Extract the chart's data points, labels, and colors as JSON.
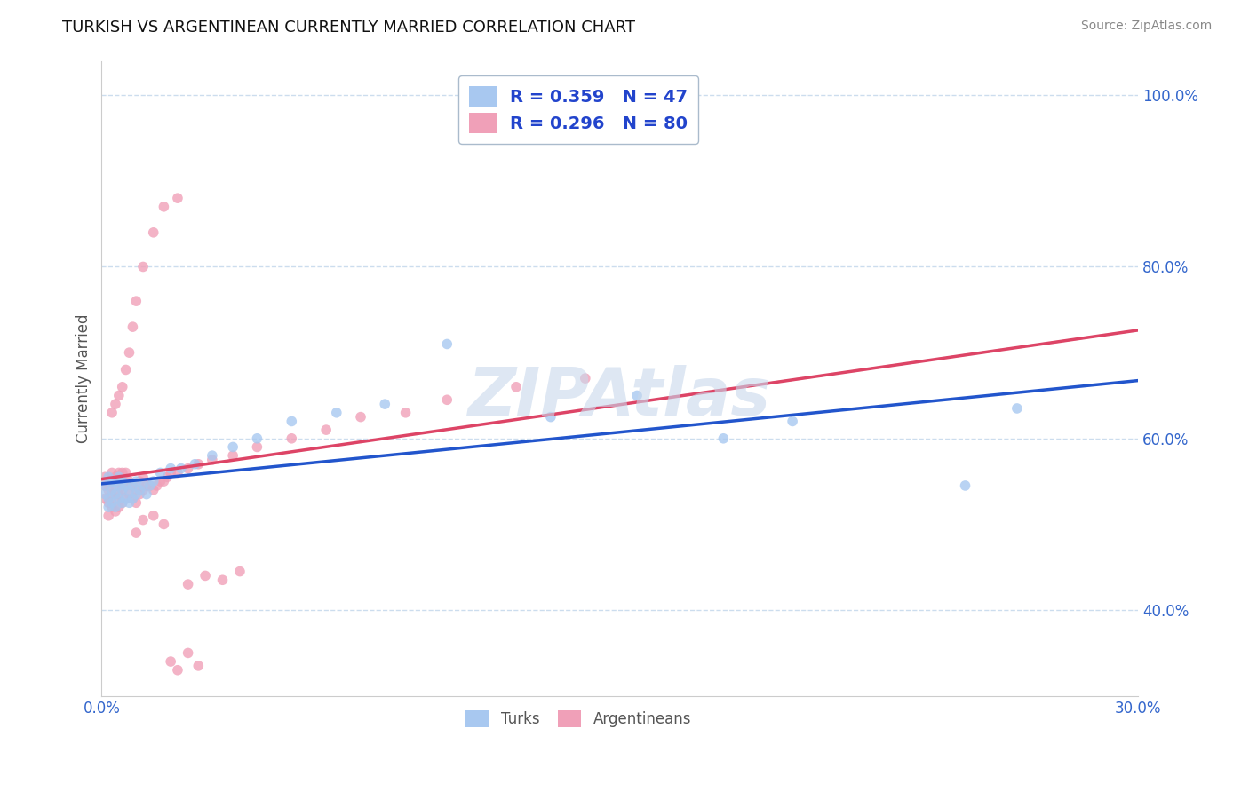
{
  "title": "TURKISH VS ARGENTINEAN CURRENTLY MARRIED CORRELATION CHART",
  "source": "Source: ZipAtlas.com",
  "ylabel": "Currently Married",
  "legend_turks": "Turks",
  "legend_argentineans": "Argentineans",
  "R_turks": 0.359,
  "N_turks": 47,
  "R_argentineans": 0.296,
  "N_argentineans": 80,
  "color_turks": "#a8c8f0",
  "color_argentineans": "#f0a0b8",
  "trendline_turks": "#2255cc",
  "trendline_argentineans": "#dd4466",
  "trendline_dashed_color": "#ddaaaa",
  "x_min": 0.0,
  "x_max": 0.3,
  "y_min": 0.3,
  "y_max": 1.04,
  "background_color": "#ffffff",
  "grid_color": "#ccddee",
  "watermark": "ZIPAtlas",
  "watermark_color": "#c8d8ec",
  "turks_x": [
    0.001,
    0.001,
    0.002,
    0.002,
    0.002,
    0.003,
    0.003,
    0.003,
    0.004,
    0.004,
    0.004,
    0.005,
    0.005,
    0.005,
    0.006,
    0.006,
    0.006,
    0.007,
    0.007,
    0.008,
    0.008,
    0.009,
    0.009,
    0.01,
    0.01,
    0.011,
    0.012,
    0.013,
    0.014,
    0.015,
    0.017,
    0.02,
    0.023,
    0.027,
    0.032,
    0.038,
    0.045,
    0.055,
    0.068,
    0.082,
    0.1,
    0.13,
    0.155,
    0.18,
    0.2,
    0.25,
    0.265
  ],
  "turks_y": [
    0.535,
    0.545,
    0.52,
    0.53,
    0.555,
    0.525,
    0.54,
    0.55,
    0.52,
    0.535,
    0.55,
    0.53,
    0.545,
    0.555,
    0.525,
    0.54,
    0.55,
    0.53,
    0.545,
    0.525,
    0.54,
    0.53,
    0.545,
    0.535,
    0.55,
    0.54,
    0.545,
    0.535,
    0.545,
    0.55,
    0.56,
    0.565,
    0.565,
    0.57,
    0.58,
    0.59,
    0.6,
    0.62,
    0.63,
    0.64,
    0.71,
    0.625,
    0.65,
    0.6,
    0.62,
    0.545,
    0.635
  ],
  "argentineans_x": [
    0.001,
    0.001,
    0.001,
    0.002,
    0.002,
    0.002,
    0.003,
    0.003,
    0.003,
    0.003,
    0.004,
    0.004,
    0.004,
    0.004,
    0.005,
    0.005,
    0.005,
    0.005,
    0.006,
    0.006,
    0.006,
    0.006,
    0.007,
    0.007,
    0.007,
    0.008,
    0.008,
    0.009,
    0.009,
    0.01,
    0.01,
    0.011,
    0.011,
    0.012,
    0.012,
    0.013,
    0.014,
    0.015,
    0.016,
    0.017,
    0.018,
    0.019,
    0.02,
    0.022,
    0.025,
    0.028,
    0.032,
    0.038,
    0.045,
    0.055,
    0.065,
    0.075,
    0.088,
    0.1,
    0.12,
    0.14,
    0.003,
    0.004,
    0.005,
    0.006,
    0.007,
    0.008,
    0.009,
    0.01,
    0.012,
    0.015,
    0.018,
    0.022,
    0.01,
    0.012,
    0.015,
    0.018,
    0.025,
    0.03,
    0.035,
    0.04,
    0.02,
    0.022,
    0.025,
    0.028
  ],
  "argentineans_y": [
    0.53,
    0.545,
    0.555,
    0.51,
    0.525,
    0.54,
    0.52,
    0.535,
    0.55,
    0.56,
    0.515,
    0.53,
    0.545,
    0.555,
    0.52,
    0.535,
    0.55,
    0.56,
    0.525,
    0.54,
    0.55,
    0.56,
    0.53,
    0.545,
    0.56,
    0.535,
    0.55,
    0.53,
    0.545,
    0.525,
    0.54,
    0.535,
    0.55,
    0.54,
    0.555,
    0.545,
    0.545,
    0.54,
    0.545,
    0.55,
    0.55,
    0.555,
    0.56,
    0.56,
    0.565,
    0.57,
    0.575,
    0.58,
    0.59,
    0.6,
    0.61,
    0.625,
    0.63,
    0.645,
    0.66,
    0.67,
    0.63,
    0.64,
    0.65,
    0.66,
    0.68,
    0.7,
    0.73,
    0.76,
    0.8,
    0.84,
    0.87,
    0.88,
    0.49,
    0.505,
    0.51,
    0.5,
    0.43,
    0.44,
    0.435,
    0.445,
    0.34,
    0.33,
    0.35,
    0.335
  ]
}
